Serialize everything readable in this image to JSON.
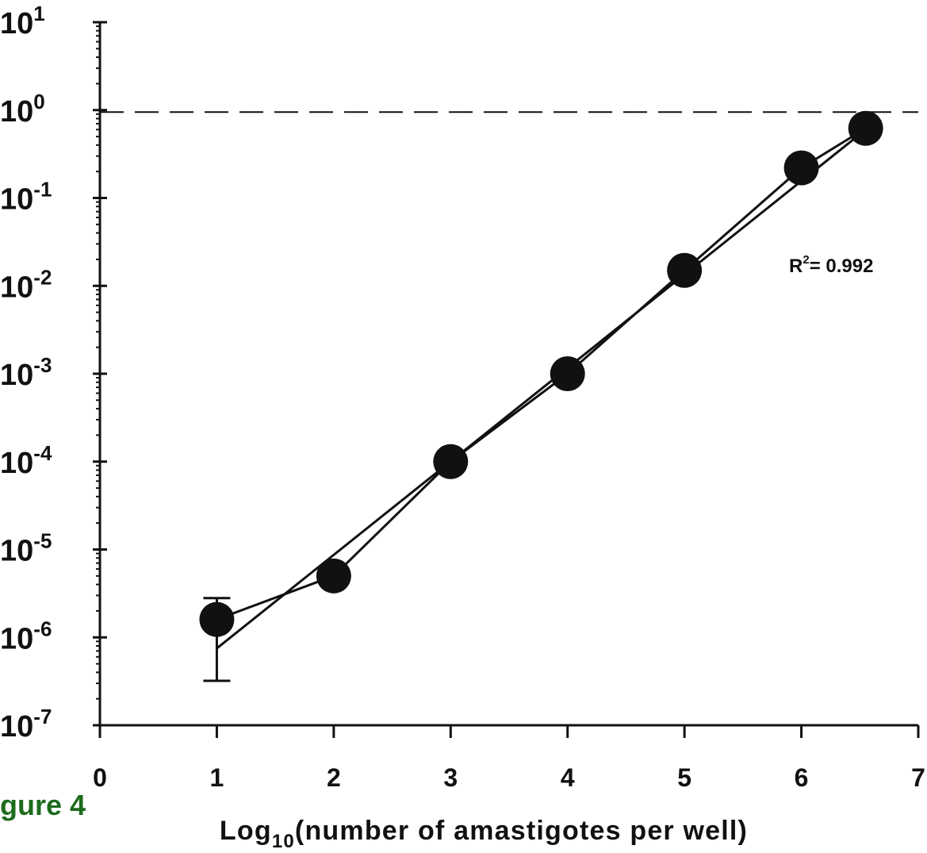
{
  "caption": "gure 4",
  "chart_data": {
    "type": "line",
    "x_axis": {
      "label_prefix": "Log",
      "label_subscript": "10",
      "label_suffix": "(number of amastigotes per well)",
      "min": 0,
      "max": 7,
      "ticks": [
        0,
        1,
        2,
        3,
        4,
        5,
        6,
        7
      ],
      "tick_labels": [
        "0",
        "1",
        "2",
        "3",
        "4",
        "5",
        "6",
        "7"
      ]
    },
    "y_axis": {
      "scale": "log",
      "min": 1e-07,
      "max": 10,
      "ticks": [
        {
          "value": 10,
          "base": "10",
          "exp": "1"
        },
        {
          "value": 1,
          "base": "10",
          "exp": "0"
        },
        {
          "value": 0.1,
          "base": "10",
          "exp": "-1"
        },
        {
          "value": 0.01,
          "base": "10",
          "exp": "-2"
        },
        {
          "value": 0.001,
          "base": "10",
          "exp": "-3"
        },
        {
          "value": 0.0001,
          "base": "10",
          "exp": "-4"
        },
        {
          "value": 1e-05,
          "base": "10",
          "exp": "-5"
        },
        {
          "value": 1e-06,
          "base": "10",
          "exp": "-6"
        },
        {
          "value": 1e-07,
          "base": "10",
          "exp": "-7"
        }
      ]
    },
    "series": [
      {
        "points": [
          {
            "x": 1,
            "y": 1.6e-06,
            "err_low": 3.2e-07,
            "err_high": 2.8e-06
          },
          {
            "x": 2,
            "y": 5e-06
          },
          {
            "x": 3,
            "y": 0.0001
          },
          {
            "x": 4,
            "y": 0.001
          },
          {
            "x": 5,
            "y": 0.015
          },
          {
            "x": 6,
            "y": 0.22
          },
          {
            "x": 6.55,
            "y": 0.62
          }
        ]
      }
    ],
    "fit_line": {
      "x_start": 1,
      "y_start": 7.5e-07,
      "x_end": 6.55,
      "y_end": 0.6
    },
    "reference_line": {
      "y": 0.95,
      "style": "dashed"
    },
    "annotation": {
      "prefix": "R",
      "superscript": "2",
      "text": "= 0.992"
    }
  }
}
